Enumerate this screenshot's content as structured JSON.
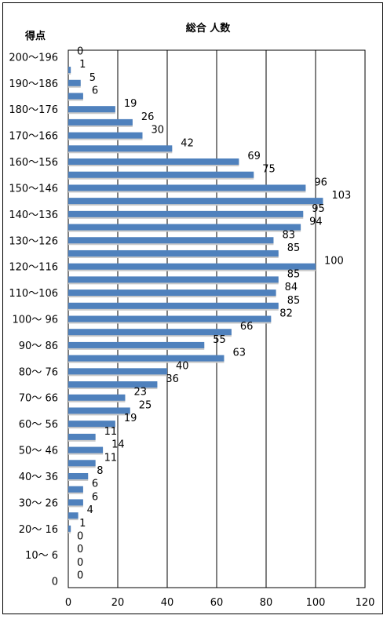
{
  "chart_data": {
    "type": "bar",
    "orientation": "horizontal",
    "title": "総合 人数",
    "ylabel": "得点",
    "xlabel": "",
    "xlim": [
      0,
      120
    ],
    "x_ticks": [
      "0",
      "20",
      "40",
      "60",
      "80",
      "100",
      "120"
    ],
    "grid": true,
    "bar_color": "#4f81bd",
    "category_labels": [
      "200～196",
      "190～186",
      "180～176",
      "170～166",
      "160～156",
      "150～146",
      "140～136",
      "130～126",
      "120～116",
      "110～106",
      "100～ 96",
      "90～ 86",
      "80～ 76",
      "70～ 66",
      "60～ 56",
      "50～ 46",
      "40～ 36",
      "30～ 26",
      "20～ 16",
      "10～ 6",
      "0"
    ],
    "values": [
      0,
      1,
      5,
      6,
      19,
      26,
      30,
      42,
      69,
      75,
      96,
      103,
      95,
      94,
      83,
      85,
      100,
      85,
      84,
      85,
      82,
      66,
      55,
      63,
      40,
      36,
      23,
      25,
      19,
      11,
      14,
      11,
      8,
      6,
      6,
      4,
      1,
      0,
      0,
      0,
      0
    ],
    "value_labels": [
      "0",
      "1",
      "5",
      "6",
      "19",
      "26",
      "30",
      "42",
      "69",
      "75",
      "96",
      "103",
      "95",
      "94",
      "83",
      "85",
      "100",
      "85",
      "84",
      "85",
      "82",
      "66",
      "55",
      "63",
      "40",
      "36",
      "23",
      "25",
      "19",
      "11",
      "14",
      "11",
      "8",
      "6",
      "6",
      "4",
      "1",
      "0",
      "0",
      "0",
      "0"
    ]
  }
}
